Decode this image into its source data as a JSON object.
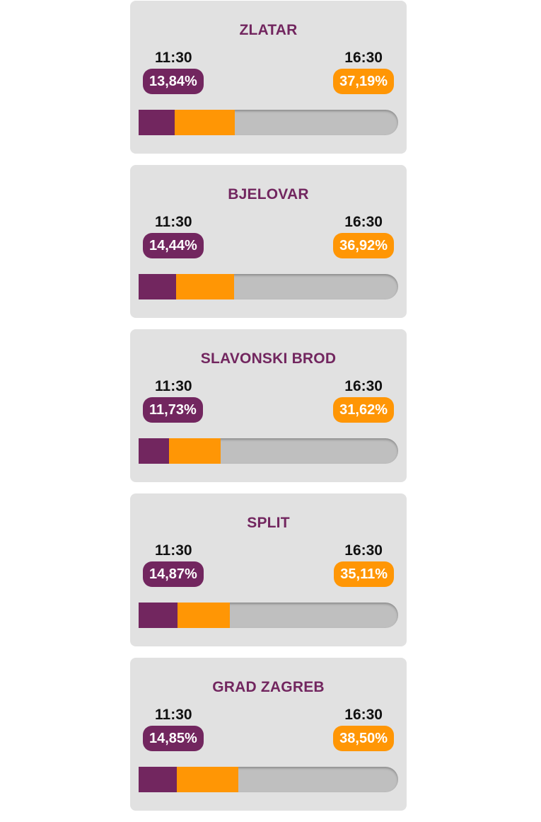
{
  "colors": {
    "card_background": "#e1e1e1",
    "title": "#72265f",
    "early_turnout": "#72265f",
    "late_turnout": "#ff9605",
    "bar_track": "#bfbfbf"
  },
  "cards": [
    {
      "title": "ZLATAR",
      "early": {
        "time": "11:30",
        "label": "13,84%",
        "value": 13.84
      },
      "late": {
        "time": "16:30",
        "label": "37,19%",
        "value": 37.19
      }
    },
    {
      "title": "BJELOVAR",
      "early": {
        "time": "11:30",
        "label": "14,44%",
        "value": 14.44
      },
      "late": {
        "time": "16:30",
        "label": "36,92%",
        "value": 36.92
      }
    },
    {
      "title": "SLAVONSKI BROD",
      "early": {
        "time": "11:30",
        "label": "11,73%",
        "value": 11.73
      },
      "late": {
        "time": "16:30",
        "label": "31,62%",
        "value": 31.62
      }
    },
    {
      "title": "SPLIT",
      "early": {
        "time": "11:30",
        "label": "14,87%",
        "value": 14.87
      },
      "late": {
        "time": "16:30",
        "label": "35,11%",
        "value": 35.11
      }
    },
    {
      "title": "GRAD ZAGREB",
      "early": {
        "time": "11:30",
        "label": "14,85%",
        "value": 14.85
      },
      "late": {
        "time": "16:30",
        "label": "38,50%",
        "value": 38.5
      }
    }
  ]
}
